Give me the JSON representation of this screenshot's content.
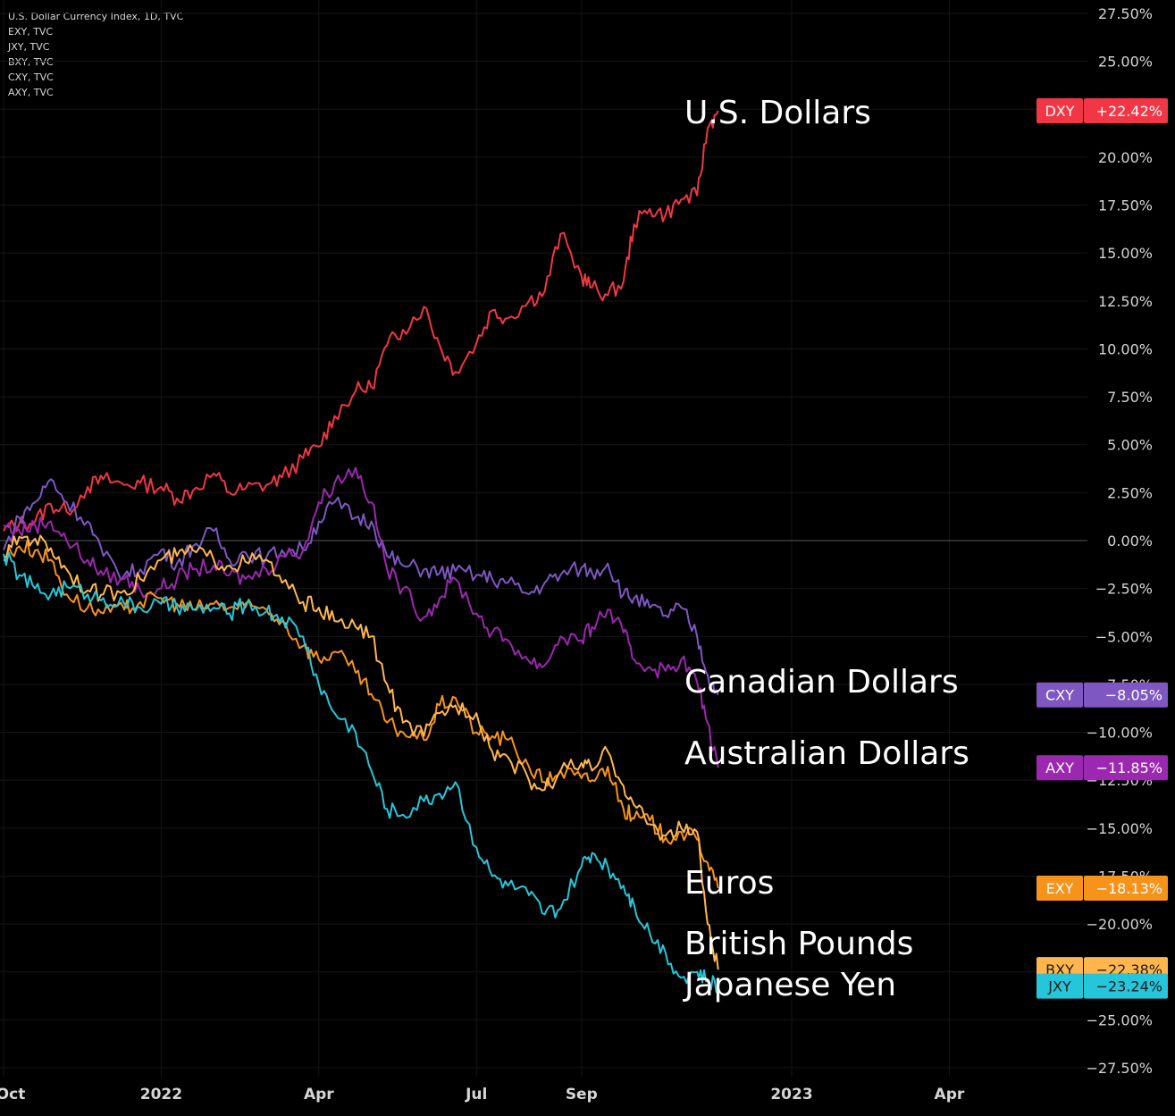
{
  "legend": [
    "U.S. Dollar Currency Index, 1D, TVC",
    "EXY, TVC",
    "JXY, TVC",
    "BXY, TVC",
    "CXY, TVC",
    "AXY, TVC"
  ],
  "chart_data": {
    "type": "line",
    "ylim": [
      -27.5,
      27.5
    ],
    "y_ticks": [
      27.5,
      25,
      22.5,
      20,
      17.5,
      15,
      12.5,
      10,
      7.5,
      5,
      2.5,
      0,
      -2.5,
      -5,
      -7.5,
      -10,
      -12.5,
      -15,
      -17.5,
      -20,
      -22.5,
      -25,
      -27.5
    ],
    "y_tick_labels": [
      "27.50%",
      "25.00%",
      "22.50%",
      "20.00%",
      "17.50%",
      "15.00%",
      "12.50%",
      "10.00%",
      "7.50%",
      "5.00%",
      "2.50%",
      "0.00%",
      "−2.50%",
      "−5.00%",
      "−7.50%",
      "−10.00%",
      "−12.50%",
      "−15.00%",
      "−17.50%",
      "−20.00%",
      "−22.50%",
      "−25.00%",
      "−27.50%"
    ],
    "x_labels": [
      "Oct",
      "2022",
      "Apr",
      "Jul",
      "Sep",
      "2023",
      "Apr"
    ],
    "x_label_months": [
      0,
      3,
      6,
      9,
      11,
      15,
      18
    ],
    "series": [
      {
        "name": "DXY",
        "label": "U.S. Dollars",
        "badge": "+22.42%",
        "color": "#f23645",
        "points": [
          [
            0,
            0.5
          ],
          [
            0.3,
            0.9
          ],
          [
            0.6,
            1.0
          ],
          [
            0.9,
            1.9
          ],
          [
            1.2,
            1.5
          ],
          [
            1.6,
            2.8
          ],
          [
            1.9,
            3.2
          ],
          [
            2.3,
            2.9
          ],
          [
            2.6,
            3.0
          ],
          [
            3.0,
            2.8
          ],
          [
            3.3,
            2.2
          ],
          [
            3.6,
            2.6
          ],
          [
            4.0,
            3.5
          ],
          [
            4.3,
            2.5
          ],
          [
            4.6,
            2.7
          ],
          [
            5.0,
            2.9
          ],
          [
            5.3,
            3.3
          ],
          [
            5.7,
            4.3
          ],
          [
            6.0,
            4.9
          ],
          [
            6.3,
            6.5
          ],
          [
            6.7,
            7.8
          ],
          [
            7.0,
            8.0
          ],
          [
            7.3,
            10.2
          ],
          [
            7.6,
            11.0
          ],
          [
            8.0,
            12.2
          ],
          [
            8.3,
            10.2
          ],
          [
            8.6,
            8.8
          ],
          [
            9.0,
            10.3
          ],
          [
            9.3,
            12.0
          ],
          [
            9.6,
            11.6
          ],
          [
            10.0,
            12.5
          ],
          [
            10.3,
            13.0
          ],
          [
            10.6,
            16.0
          ],
          [
            11.0,
            13.8
          ],
          [
            11.2,
            13.2
          ],
          [
            11.5,
            12.8
          ],
          [
            11.8,
            13.5
          ],
          [
            12.0,
            16.5
          ],
          [
            12.3,
            17.3
          ],
          [
            12.6,
            17.0
          ],
          [
            12.9,
            17.8
          ],
          [
            13.2,
            18.0
          ],
          [
            13.4,
            21.5
          ],
          [
            13.6,
            22.42
          ]
        ]
      },
      {
        "name": "CXY",
        "label": "Canadian Dollars",
        "badge": "−8.05%",
        "color": "#7e57c2",
        "points": [
          [
            0,
            -0.5
          ],
          [
            0.3,
            1.2
          ],
          [
            0.6,
            2.0
          ],
          [
            0.9,
            3.2
          ],
          [
            1.2,
            2.0
          ],
          [
            1.6,
            1.0
          ],
          [
            1.9,
            -0.8
          ],
          [
            2.3,
            -1.8
          ],
          [
            2.6,
            -1.5
          ],
          [
            3.0,
            -0.5
          ],
          [
            3.3,
            -1.2
          ],
          [
            3.6,
            -0.3
          ],
          [
            4.0,
            0.5
          ],
          [
            4.3,
            -1.0
          ],
          [
            4.6,
            -0.6
          ],
          [
            5.0,
            -0.9
          ],
          [
            5.3,
            -0.5
          ],
          [
            5.7,
            -0.5
          ],
          [
            6.0,
            1.0
          ],
          [
            6.3,
            2.0
          ],
          [
            6.7,
            1.2
          ],
          [
            7.0,
            1.0
          ],
          [
            7.3,
            -0.8
          ],
          [
            7.6,
            -1.3
          ],
          [
            8.0,
            -1.5
          ],
          [
            8.3,
            -1.7
          ],
          [
            8.6,
            -1.6
          ],
          [
            9.0,
            -1.8
          ],
          [
            9.3,
            -2.0
          ],
          [
            9.6,
            -2.2
          ],
          [
            10.0,
            -2.8
          ],
          [
            10.3,
            -2.2
          ],
          [
            10.6,
            -1.8
          ],
          [
            11.0,
            -1.4
          ],
          [
            11.2,
            -1.7
          ],
          [
            11.5,
            -1.2
          ],
          [
            11.8,
            -2.8
          ],
          [
            12.0,
            -3.0
          ],
          [
            12.3,
            -3.5
          ],
          [
            12.6,
            -3.9
          ],
          [
            12.9,
            -3.5
          ],
          [
            13.2,
            -5.0
          ],
          [
            13.4,
            -7.0
          ],
          [
            13.6,
            -8.05
          ]
        ]
      },
      {
        "name": "AXY",
        "label": "Australian Dollars",
        "badge": "−11.85%",
        "color": "#9c27b0",
        "points": [
          [
            0,
            0.8
          ],
          [
            0.3,
            0.5
          ],
          [
            0.6,
            0.8
          ],
          [
            0.9,
            1.0
          ],
          [
            1.2,
            0.0
          ],
          [
            1.6,
            -1.0
          ],
          [
            1.9,
            -1.8
          ],
          [
            2.3,
            -2.0
          ],
          [
            2.6,
            -2.6
          ],
          [
            3.0,
            -2.5
          ],
          [
            3.3,
            -2.0
          ],
          [
            3.6,
            -1.5
          ],
          [
            4.0,
            -1.3
          ],
          [
            4.3,
            -1.8
          ],
          [
            4.6,
            -2.0
          ],
          [
            5.0,
            -1.5
          ],
          [
            5.3,
            -0.8
          ],
          [
            5.7,
            -0.5
          ],
          [
            6.0,
            2.0
          ],
          [
            6.3,
            3.0
          ],
          [
            6.7,
            3.8
          ],
          [
            7.0,
            2.0
          ],
          [
            7.3,
            -1.5
          ],
          [
            7.6,
            -2.5
          ],
          [
            8.0,
            -4.0
          ],
          [
            8.3,
            -3.0
          ],
          [
            8.6,
            -2.0
          ],
          [
            9.0,
            -3.8
          ],
          [
            9.3,
            -4.8
          ],
          [
            9.6,
            -5.2
          ],
          [
            10.0,
            -6.3
          ],
          [
            10.3,
            -6.5
          ],
          [
            10.6,
            -5.0
          ],
          [
            11.0,
            -5.2
          ],
          [
            11.2,
            -4.5
          ],
          [
            11.5,
            -3.6
          ],
          [
            11.8,
            -4.8
          ],
          [
            12.0,
            -6.2
          ],
          [
            12.3,
            -6.6
          ],
          [
            12.6,
            -6.8
          ],
          [
            12.9,
            -6.2
          ],
          [
            13.2,
            -7.4
          ],
          [
            13.4,
            -9.5
          ],
          [
            13.6,
            -11.85
          ]
        ]
      },
      {
        "name": "EXY",
        "label": "Euros",
        "badge": "−18.13%",
        "color": "#f7931a",
        "points": [
          [
            0,
            -0.8
          ],
          [
            0.3,
            -0.3
          ],
          [
            0.6,
            -0.5
          ],
          [
            0.9,
            -1.0
          ],
          [
            1.2,
            -2.8
          ],
          [
            1.6,
            -3.5
          ],
          [
            1.9,
            -3.8
          ],
          [
            2.3,
            -3.6
          ],
          [
            2.6,
            -3.2
          ],
          [
            3.0,
            -3.0
          ],
          [
            3.3,
            -3.3
          ],
          [
            3.6,
            -3.6
          ],
          [
            4.0,
            -3.3
          ],
          [
            4.3,
            -3.5
          ],
          [
            4.6,
            -3.5
          ],
          [
            5.0,
            -3.6
          ],
          [
            5.3,
            -4.2
          ],
          [
            5.7,
            -5.5
          ],
          [
            6.0,
            -6.2
          ],
          [
            6.3,
            -5.8
          ],
          [
            6.7,
            -6.9
          ],
          [
            7.0,
            -8.0
          ],
          [
            7.3,
            -9.5
          ],
          [
            7.6,
            -10.0
          ],
          [
            8.0,
            -10.4
          ],
          [
            8.3,
            -8.6
          ],
          [
            8.6,
            -8.2
          ],
          [
            9.0,
            -10.0
          ],
          [
            9.3,
            -10.2
          ],
          [
            9.6,
            -10.4
          ],
          [
            10.0,
            -11.8
          ],
          [
            10.3,
            -12.6
          ],
          [
            10.6,
            -12.0
          ],
          [
            11.0,
            -12.4
          ],
          [
            11.2,
            -12.5
          ],
          [
            11.5,
            -11.8
          ],
          [
            11.8,
            -14.0
          ],
          [
            12.0,
            -14.5
          ],
          [
            12.3,
            -14.6
          ],
          [
            12.6,
            -15.5
          ],
          [
            12.9,
            -15.2
          ],
          [
            13.2,
            -15.6
          ],
          [
            13.4,
            -16.8
          ],
          [
            13.6,
            -18.13
          ]
        ]
      },
      {
        "name": "BXY",
        "label": "British Pounds",
        "badge": "−22.38%",
        "color": "#ffb74d",
        "points": [
          [
            0,
            -1.0
          ],
          [
            0.3,
            0.2
          ],
          [
            0.6,
            0.1
          ],
          [
            0.9,
            -0.4
          ],
          [
            1.2,
            -1.5
          ],
          [
            1.6,
            -2.6
          ],
          [
            1.9,
            -2.8
          ],
          [
            2.3,
            -2.6
          ],
          [
            2.6,
            -2.0
          ],
          [
            3.0,
            -1.0
          ],
          [
            3.3,
            -0.8
          ],
          [
            3.6,
            -0.5
          ],
          [
            4.0,
            -1.0
          ],
          [
            4.3,
            -1.3
          ],
          [
            4.6,
            -1.1
          ],
          [
            5.0,
            -1.0
          ],
          [
            5.3,
            -2.2
          ],
          [
            5.7,
            -3.2
          ],
          [
            6.0,
            -3.5
          ],
          [
            6.3,
            -4.2
          ],
          [
            6.7,
            -4.5
          ],
          [
            7.0,
            -5.0
          ],
          [
            7.3,
            -7.5
          ],
          [
            7.6,
            -9.5
          ],
          [
            8.0,
            -10.2
          ],
          [
            8.3,
            -9.0
          ],
          [
            8.6,
            -8.6
          ],
          [
            9.0,
            -9.0
          ],
          [
            9.3,
            -11.0
          ],
          [
            9.6,
            -11.3
          ],
          [
            10.0,
            -12.5
          ],
          [
            10.3,
            -13.0
          ],
          [
            10.6,
            -12.0
          ],
          [
            11.0,
            -11.6
          ],
          [
            11.2,
            -12.0
          ],
          [
            11.5,
            -11.0
          ],
          [
            11.8,
            -12.8
          ],
          [
            12.0,
            -13.8
          ],
          [
            12.3,
            -14.8
          ],
          [
            12.6,
            -15.4
          ],
          [
            12.9,
            -15.0
          ],
          [
            13.2,
            -15.2
          ],
          [
            13.4,
            -20.0
          ],
          [
            13.6,
            -22.38
          ]
        ]
      },
      {
        "name": "JXY",
        "label": "Japanese Yen",
        "badge": "−23.24%",
        "color": "#26c6da",
        "points": [
          [
            0,
            -0.7
          ],
          [
            0.3,
            -1.8
          ],
          [
            0.6,
            -2.5
          ],
          [
            0.9,
            -2.8
          ],
          [
            1.2,
            -2.4
          ],
          [
            1.6,
            -2.8
          ],
          [
            1.9,
            -3.0
          ],
          [
            2.3,
            -3.3
          ],
          [
            2.6,
            -3.5
          ],
          [
            3.0,
            -3.3
          ],
          [
            3.3,
            -3.5
          ],
          [
            3.6,
            -3.6
          ],
          [
            4.0,
            -3.5
          ],
          [
            4.3,
            -3.8
          ],
          [
            4.6,
            -3.3
          ],
          [
            5.0,
            -3.7
          ],
          [
            5.3,
            -4.0
          ],
          [
            5.7,
            -5.0
          ],
          [
            6.0,
            -7.5
          ],
          [
            6.3,
            -9.0
          ],
          [
            6.7,
            -10.0
          ],
          [
            7.0,
            -12.0
          ],
          [
            7.3,
            -14.0
          ],
          [
            7.6,
            -14.3
          ],
          [
            8.0,
            -13.6
          ],
          [
            8.3,
            -13.2
          ],
          [
            8.6,
            -12.6
          ],
          [
            9.0,
            -16.0
          ],
          [
            9.3,
            -17.5
          ],
          [
            9.6,
            -18.0
          ],
          [
            10.0,
            -18.5
          ],
          [
            10.3,
            -19.5
          ],
          [
            10.6,
            -19.2
          ],
          [
            11.0,
            -17.0
          ],
          [
            11.2,
            -16.3
          ],
          [
            11.5,
            -17.0
          ],
          [
            11.8,
            -18.0
          ],
          [
            12.0,
            -19.0
          ],
          [
            12.3,
            -20.5
          ],
          [
            12.6,
            -21.5
          ],
          [
            12.9,
            -22.8
          ],
          [
            13.2,
            -22.5
          ],
          [
            13.4,
            -23.0
          ],
          [
            13.6,
            -23.24
          ]
        ]
      }
    ]
  }
}
